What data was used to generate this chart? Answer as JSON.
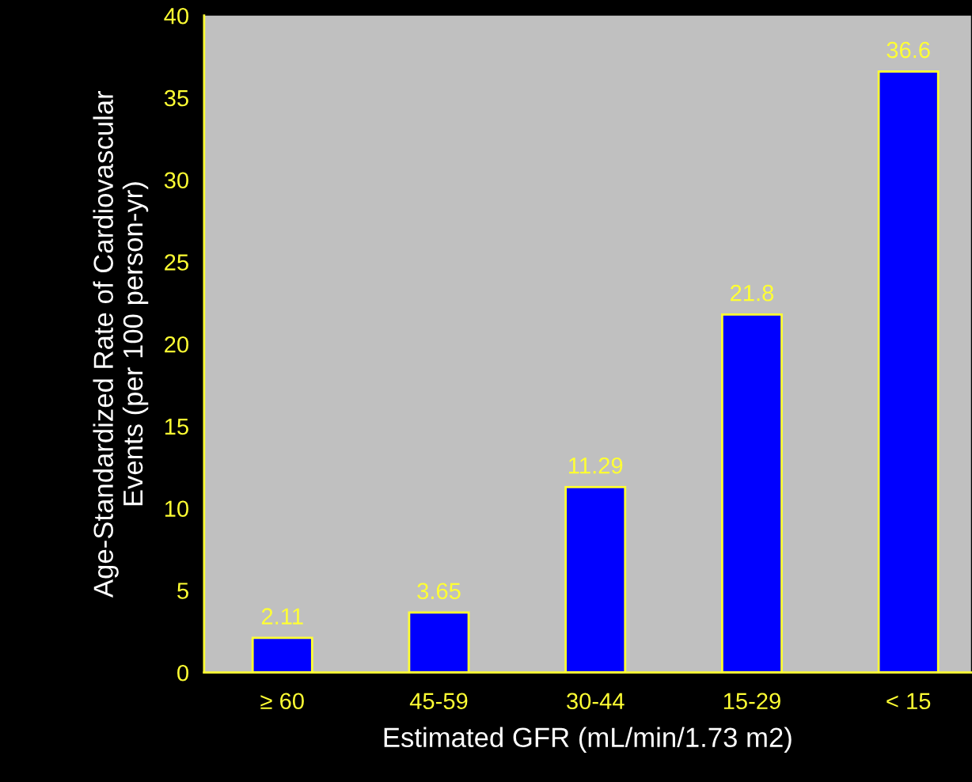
{
  "chart_data": {
    "type": "bar",
    "xlabel": "Estimated GFR (mL/min/1.73 m2)",
    "ylabel": "Age-Standardized Rate of Cardiovascular\nEvents (per 100 person-yr)",
    "categories": [
      "≥ 60",
      "45-59",
      "30-44",
      "15-29",
      "< 15"
    ],
    "values": [
      2.11,
      3.65,
      11.29,
      21.8,
      36.6
    ],
    "color": "#0000ff",
    "ylim": [
      0,
      40
    ],
    "yticks": [
      0,
      5,
      10,
      15,
      20,
      25,
      30,
      35,
      40
    ],
    "data_labels": true,
    "grid": false,
    "legend": false
  }
}
